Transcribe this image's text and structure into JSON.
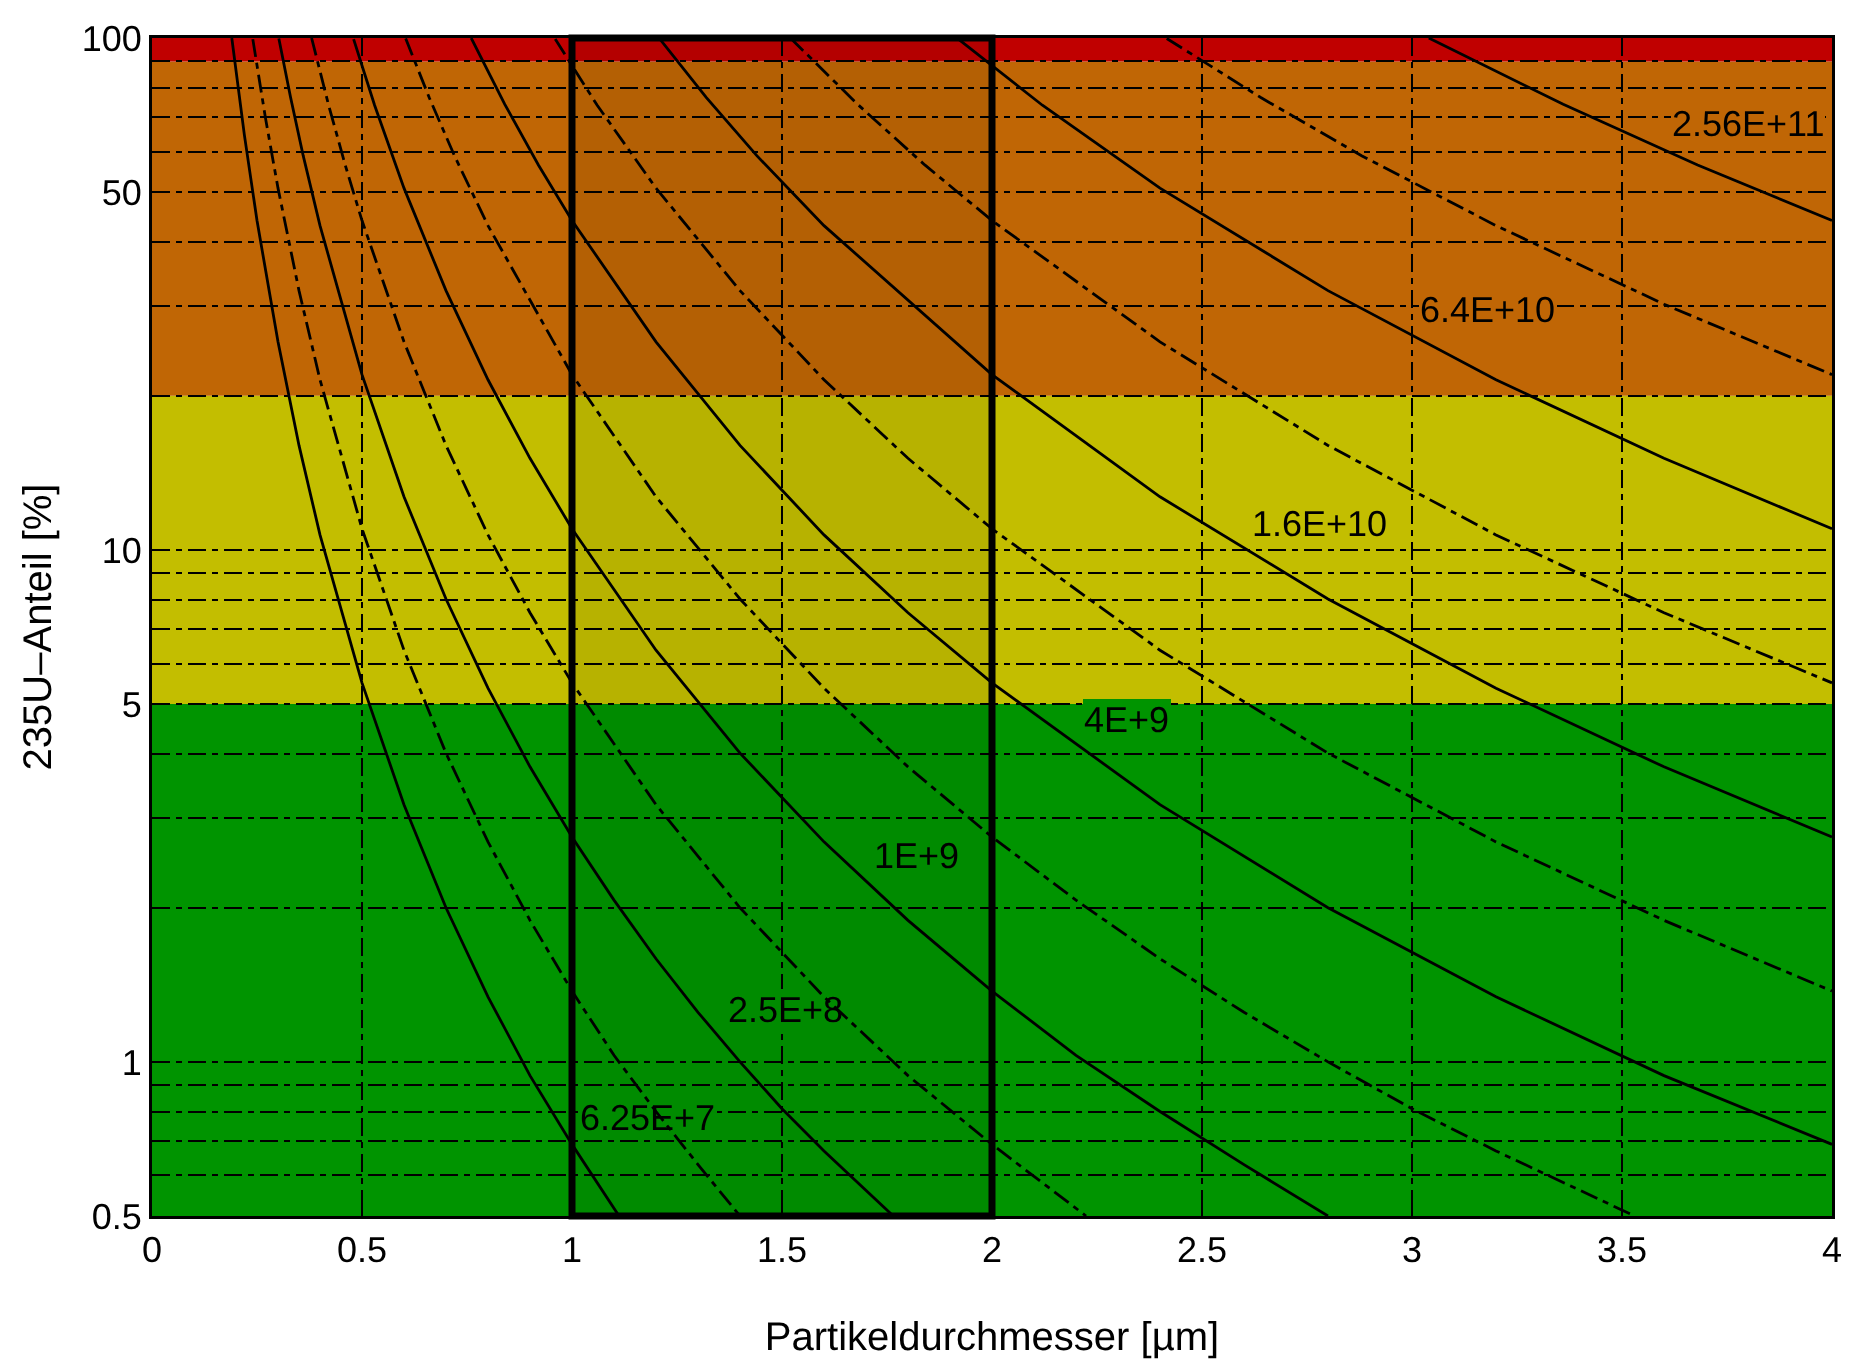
{
  "chart_data": {
    "type": "line",
    "xlabel": "Partikeldurchmesser [µm]",
    "ylabel": "235U–Anteil [%]",
    "log": "y",
    "grid": true,
    "marker": "none",
    "xlim": [
      0,
      4
    ],
    "xticks": [
      0,
      0.5,
      1,
      1.5,
      2,
      2.5,
      3,
      3.5,
      4
    ],
    "ylim": [
      0.5,
      100
    ],
    "yticks": [
      0.5,
      {
        "value": 0.6,
        "label": null
      },
      {
        "value": 0.7,
        "label": null
      },
      {
        "value": 0.8,
        "label": null
      },
      {
        "value": 0.9,
        "label": null
      },
      1,
      {
        "value": 2,
        "label": null
      },
      {
        "value": 3,
        "label": null
      },
      {
        "value": 4,
        "label": null
      },
      5,
      {
        "value": 6,
        "label": null
      },
      {
        "value": 7,
        "label": null
      },
      {
        "value": 8,
        "label": null
      },
      {
        "value": 9,
        "label": null
      },
      10,
      {
        "value": 20,
        "label": null
      },
      {
        "value": 30,
        "label": null
      },
      {
        "value": 40,
        "label": null
      },
      50,
      {
        "value": 60,
        "label": null
      },
      {
        "value": 70,
        "label": null
      },
      {
        "value": 80,
        "label": null
      },
      {
        "value": 90,
        "label": null
      },
      100
    ],
    "bands": [
      {
        "axis": "y",
        "from": 0.5,
        "to": 5,
        "color": "#009400"
      },
      {
        "axis": "y",
        "from": 5,
        "to": 20,
        "color": "#c3be00"
      },
      {
        "axis": "y",
        "from": 20,
        "to": 90,
        "color": "#c06605"
      },
      {
        "axis": "y",
        "from": 90,
        "to": 100,
        "color": "#c00000"
      },
      {
        "axis": "x",
        "from": 1,
        "to": 2,
        "color": "#000000"
      }
    ],
    "series": [
      {
        "color": "#000000",
        "line_style": "solid",
        "x": [
          0.19,
          0.22,
          0.25,
          0.3,
          0.35,
          0.4,
          0.5,
          0.6,
          0.7,
          0.8,
          0.9,
          1.0,
          1.112
        ],
        "values": [
          100,
          64.6,
          44,
          25.5,
          16.0,
          10.7,
          5.5,
          3.18,
          2.0,
          1.34,
          0.94,
          0.69,
          0.5
        ]
      },
      {
        "color": "#000000",
        "line_style": "dashed",
        "x": [
          0.24,
          0.27,
          0.3,
          0.35,
          0.4,
          0.5,
          0.6,
          0.7,
          0.8,
          0.9,
          1.0,
          1.1,
          1.2,
          1.3,
          1.4
        ],
        "values": [
          99.5,
          69.9,
          50.9,
          32.1,
          21.5,
          11,
          6.37,
          4.01,
          2.69,
          1.89,
          1.375,
          1.03,
          0.8,
          0.63,
          0.5
        ]
      },
      {
        "color": "#000000",
        "line_style": "solid",
        "x": [
          0.302,
          0.33,
          0.36,
          0.4,
          0.5,
          0.6,
          0.7,
          0.8,
          0.9,
          1.0,
          1.1,
          1.2,
          1.3,
          1.4,
          1.5,
          1.6,
          1.765
        ],
        "values": [
          99.8,
          76.5,
          58.9,
          43,
          22,
          12.7,
          8.02,
          5.37,
          3.77,
          2.75,
          2.07,
          1.59,
          1.25,
          1.0,
          0.81,
          0.67,
          0.5
        ]
      },
      {
        "color": "#000000",
        "line_style": "dashed",
        "x": [
          0.38,
          0.42,
          0.46,
          0.5,
          0.6,
          0.7,
          0.8,
          0.9,
          1.0,
          1.2,
          1.4,
          1.6,
          1.8,
          2.0,
          2.224
        ],
        "values": [
          100,
          74.2,
          56.5,
          44,
          25.5,
          16.0,
          10.7,
          7.54,
          5.5,
          3.18,
          2.0,
          1.34,
          0.94,
          0.69,
          0.5
        ]
      },
      {
        "color": "#000000",
        "line_style": "solid",
        "x": [
          0.48,
          0.53,
          0.6,
          0.7,
          0.8,
          0.9,
          1.0,
          1.2,
          1.4,
          1.6,
          1.8,
          2.0,
          2.2,
          2.4,
          2.6,
          2.8
        ],
        "values": [
          99.5,
          73.9,
          50.9,
          32.1,
          21.5,
          15.1,
          11,
          6.37,
          4.01,
          2.69,
          1.89,
          1.375,
          1.03,
          0.8,
          0.63,
          0.5
        ]
      },
      {
        "color": "#000000",
        "line_style": "dashed",
        "x": [
          0.604,
          0.66,
          0.72,
          0.8,
          1.0,
          1.2,
          1.4,
          1.6,
          1.8,
          2.0,
          2.2,
          2.4,
          2.6,
          2.8,
          3.0,
          3.2,
          3.53
        ],
        "values": [
          99.8,
          76.5,
          58.9,
          43,
          22,
          12.7,
          8.02,
          5.37,
          3.77,
          2.75,
          2.07,
          1.59,
          1.25,
          1.0,
          0.81,
          0.67,
          0.5
        ]
      },
      {
        "color": "#000000",
        "line_style": "solid",
        "x": [
          0.76,
          0.84,
          0.92,
          1.0,
          1.2,
          1.4,
          1.6,
          1.8,
          2.0,
          2.4,
          2.8,
          3.2,
          3.6,
          4.0
        ],
        "values": [
          100,
          74.2,
          56.5,
          44,
          25.5,
          16.0,
          10.7,
          7.54,
          5.5,
          3.18,
          2.0,
          1.34,
          0.94,
          0.69
        ]
      },
      {
        "color": "#000000",
        "line_style": "dashed",
        "x": [
          0.96,
          1.06,
          1.2,
          1.4,
          1.6,
          1.8,
          2.0,
          2.4,
          2.8,
          3.2,
          3.6,
          4.0
        ],
        "values": [
          99.5,
          73.9,
          50.9,
          32.1,
          21.5,
          15.1,
          11,
          6.37,
          4.01,
          2.69,
          1.89,
          1.375
        ]
      },
      {
        "color": "#000000",
        "line_style": "solid",
        "x": [
          1.208,
          1.32,
          1.44,
          1.6,
          2.0,
          2.4,
          2.8,
          3.2,
          3.6,
          4.0
        ],
        "values": [
          99.8,
          76.5,
          58.9,
          43,
          22,
          12.7,
          8.02,
          5.37,
          3.77,
          2.75
        ]
      },
      {
        "color": "#000000",
        "line_style": "dashed",
        "x": [
          1.52,
          1.68,
          1.84,
          2.0,
          2.4,
          2.8,
          3.2,
          3.6,
          4.0
        ],
        "values": [
          100,
          74.2,
          56.5,
          44,
          25.5,
          16.0,
          10.7,
          7.54,
          5.5
        ]
      },
      {
        "color": "#000000",
        "line_style": "solid",
        "x": [
          1.92,
          2.12,
          2.4,
          2.8,
          3.2,
          3.6,
          4.0
        ],
        "values": [
          99.5,
          73.9,
          50.9,
          32.1,
          21.5,
          15.1,
          11
        ]
      },
      {
        "color": "#000000",
        "line_style": "dashed",
        "x": [
          2.416,
          2.64,
          2.88,
          3.2,
          3.6,
          4.0
        ],
        "values": [
          99.8,
          76.5,
          58.9,
          43,
          30.2,
          22
        ]
      },
      {
        "color": "#000000",
        "line_style": "solid",
        "x": [
          3.04,
          3.36,
          3.68,
          4.0
        ],
        "values": [
          100,
          74.2,
          56.5,
          44
        ]
      }
    ],
    "annotations": [
      {
        "text": "2.56E+11",
        "x": 3.6,
        "y": 60.4
      },
      {
        "text": "6.4E+10",
        "x": 3.0,
        "y": 26.1
      },
      {
        "text": "1.6E+10",
        "x": 2.6,
        "y": 10.0
      },
      {
        "text": "4E+9",
        "x": 2.2,
        "y": 4.13
      },
      {
        "text": "1E+9",
        "x": 1.7,
        "y": 2.24
      },
      {
        "text": "2.5E+8",
        "x": 1.35,
        "y": 1.12
      },
      {
        "text": "6.25E+7",
        "x": 1.0,
        "y": 0.69
      }
    ]
  }
}
